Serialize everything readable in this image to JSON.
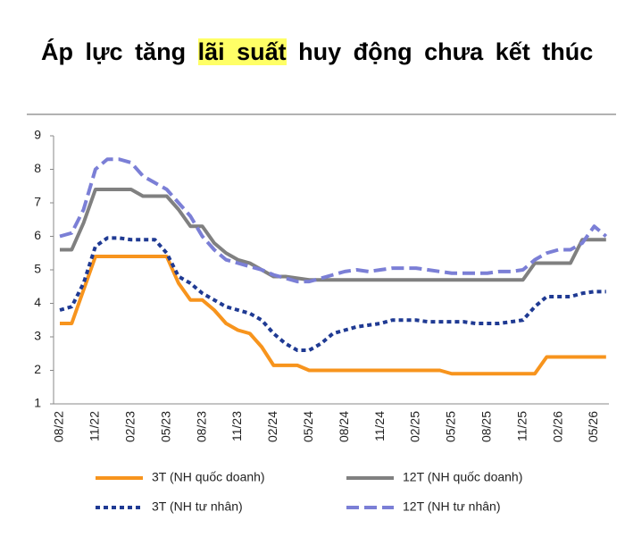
{
  "chart_data": {
    "type": "line",
    "title": [
      "Áp lực tăng",
      "lãi suất",
      "huy động chưa kết thúc"
    ],
    "categories": [
      "08/22",
      null,
      null,
      "11/22",
      null,
      null,
      "02/23",
      null,
      null,
      "05/23",
      null,
      null,
      "08/23",
      null,
      null,
      "11/23",
      null,
      null,
      "02/24",
      null,
      null,
      "05/24",
      null,
      null,
      "08/24",
      null,
      null,
      "11/24",
      null,
      null,
      "02/25",
      null,
      null,
      "05/25",
      null,
      null,
      "08/25",
      null,
      null,
      "11/25",
      null,
      null,
      "02/26",
      null,
      null,
      "05/26",
      null
    ],
    "series": [
      {
        "name": "3T (NH quốc doanh)",
        "color": "#f7941d",
        "dash": "solid",
        "values": [
          3.4,
          3.4,
          4.4,
          5.4,
          5.4,
          5.4,
          5.4,
          5.4,
          5.4,
          5.4,
          4.6,
          4.1,
          4.1,
          3.8,
          3.4,
          3.2,
          3.1,
          2.7,
          2.15,
          2.15,
          2.15,
          2.0,
          2.0,
          2.0,
          2.0,
          2.0,
          2.0,
          2.0,
          2.0,
          2.0,
          2.0,
          2.0,
          2.0,
          1.9,
          1.9,
          1.9,
          1.9,
          1.9,
          1.9,
          1.9,
          1.9,
          2.4,
          2.4,
          2.4,
          2.4,
          2.4,
          2.4
        ]
      },
      {
        "name": "12T (NH quốc doanh)",
        "color": "#808080",
        "dash": "solid",
        "values": [
          5.6,
          5.6,
          6.4,
          7.4,
          7.4,
          7.4,
          7.4,
          7.2,
          7.2,
          7.2,
          6.8,
          6.3,
          6.3,
          5.8,
          5.5,
          5.3,
          5.2,
          5.0,
          4.8,
          4.8,
          4.75,
          4.7,
          4.7,
          4.7,
          4.7,
          4.7,
          4.7,
          4.7,
          4.7,
          4.7,
          4.7,
          4.7,
          4.7,
          4.7,
          4.7,
          4.7,
          4.7,
          4.7,
          4.7,
          4.7,
          5.2,
          5.2,
          5.2,
          5.2,
          5.9,
          5.9,
          5.9
        ]
      },
      {
        "name": "3T (NH tư nhân)",
        "color": "#1f3a93",
        "dash": "short",
        "values": [
          3.8,
          3.9,
          4.6,
          5.7,
          5.95,
          5.95,
          5.9,
          5.9,
          5.9,
          5.5,
          4.8,
          4.6,
          4.3,
          4.1,
          3.9,
          3.8,
          3.7,
          3.5,
          3.1,
          2.8,
          2.6,
          2.6,
          2.8,
          3.1,
          3.2,
          3.3,
          3.35,
          3.4,
          3.5,
          3.5,
          3.5,
          3.45,
          3.45,
          3.45,
          3.45,
          3.4,
          3.4,
          3.4,
          3.45,
          3.5,
          3.9,
          4.2,
          4.2,
          4.2,
          4.3,
          4.35,
          4.35
        ]
      },
      {
        "name": "12T (NH tư nhân)",
        "color": "#7b7fd6",
        "dash": "long",
        "values": [
          6.0,
          6.1,
          6.8,
          8.0,
          8.3,
          8.3,
          8.2,
          7.8,
          7.6,
          7.4,
          7.0,
          6.6,
          6.0,
          5.6,
          5.3,
          5.2,
          5.1,
          5.0,
          4.85,
          4.75,
          4.65,
          4.65,
          4.75,
          4.85,
          4.95,
          5.0,
          4.95,
          5.0,
          5.05,
          5.05,
          5.05,
          5.0,
          4.95,
          4.9,
          4.9,
          4.9,
          4.9,
          4.95,
          4.95,
          5.0,
          5.3,
          5.5,
          5.6,
          5.6,
          5.8,
          6.3,
          6.0
        ]
      }
    ],
    "ylim": [
      1,
      9
    ],
    "yticks": [
      1,
      2,
      3,
      4,
      5,
      6,
      7,
      8,
      9
    ],
    "grid": false
  }
}
